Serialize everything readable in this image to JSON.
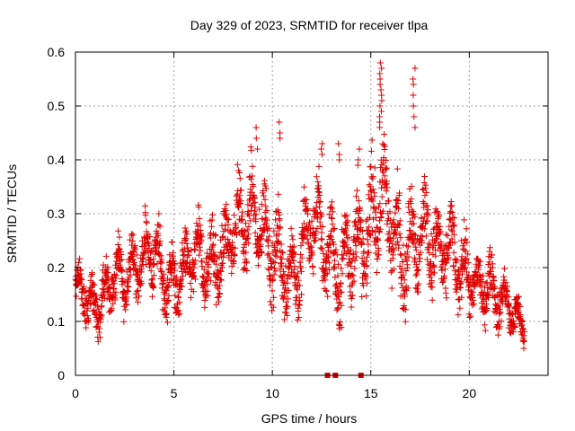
{
  "chart_data": {
    "type": "scatter",
    "title": "Day 329 of 2023, SRMTID for receiver tlpa",
    "xlabel": "GPS time / hours",
    "ylabel": "SRMTID / TECUs",
    "xlim": [
      0,
      24
    ],
    "ylim": [
      0,
      0.6
    ],
    "xticks": [
      0,
      5,
      10,
      15,
      20
    ],
    "xtick_labels": [
      "0",
      "5",
      "10",
      "15",
      "20"
    ],
    "yticks": [
      0,
      0.1,
      0.2,
      0.3,
      0.4,
      0.5,
      0.6
    ],
    "ytick_labels": [
      "0",
      "0.1",
      "0.2",
      "0.3",
      "0.4",
      "0.5",
      "0.6"
    ],
    "grid": true,
    "marker": "plus",
    "color": "#e00000",
    "series": [
      {
        "name": "SRMTID",
        "trend": {
          "x": [
            0,
            0.5,
            1.0,
            1.5,
            2.0,
            2.5,
            3.0,
            3.5,
            4.0,
            4.5,
            5.0,
            5.5,
            6.0,
            6.5,
            7.0,
            7.5,
            8.0,
            8.5,
            9.0,
            9.5,
            10.0,
            10.5,
            11.0,
            11.5,
            12.0,
            12.5,
            13.0,
            13.5,
            14.0,
            14.5,
            15.0,
            15.5,
            16.0,
            16.5,
            17.0,
            17.5,
            18.0,
            18.5,
            19.0,
            19.5,
            20.0,
            20.5,
            21.0,
            21.5,
            22.0,
            22.5,
            22.8
          ],
          "y": [
            0.16,
            0.15,
            0.12,
            0.16,
            0.19,
            0.18,
            0.2,
            0.21,
            0.24,
            0.18,
            0.17,
            0.19,
            0.23,
            0.21,
            0.2,
            0.23,
            0.27,
            0.28,
            0.3,
            0.27,
            0.23,
            0.21,
            0.18,
            0.22,
            0.29,
            0.26,
            0.22,
            0.18,
            0.25,
            0.23,
            0.28,
            0.33,
            0.3,
            0.22,
            0.24,
            0.27,
            0.26,
            0.22,
            0.24,
            0.2,
            0.18,
            0.16,
            0.17,
            0.14,
            0.13,
            0.1,
            0.09
          ]
        },
        "spread": {
          "x": [
            0,
            2,
            4,
            6,
            8,
            10,
            12,
            14,
            15,
            16,
            17,
            18,
            20,
            22,
            22.8
          ],
          "y": [
            0.05,
            0.06,
            0.07,
            0.07,
            0.09,
            0.09,
            0.09,
            0.1,
            0.11,
            0.11,
            0.1,
            0.09,
            0.07,
            0.05,
            0.04
          ]
        },
        "peaks": [
          {
            "x": 15.5,
            "values": [
              0.58,
              0.57,
              0.56,
              0.55,
              0.54,
              0.53,
              0.52,
              0.51,
              0.5,
              0.49,
              0.48,
              0.47,
              0.46
            ]
          },
          {
            "x": 17.2,
            "values": [
              0.57,
              0.55,
              0.54,
              0.52,
              0.5,
              0.48,
              0.46
            ]
          },
          {
            "x": 10.4,
            "values": [
              0.47,
              0.45,
              0.44
            ]
          },
          {
            "x": 9.2,
            "values": [
              0.46,
              0.44,
              0.42
            ]
          },
          {
            "x": 12.5,
            "values": [
              0.43,
              0.42,
              0.41
            ]
          },
          {
            "x": 13.4,
            "values": [
              0.43,
              0.41,
              0.4
            ]
          },
          {
            "x": 14.4,
            "values": [
              0.42,
              0.4,
              0.39
            ]
          }
        ],
        "zero_points": {
          "x": [
            12.8,
            13.2,
            14.5
          ],
          "y": [
            0,
            0,
            0
          ]
        },
        "x_range": [
          0,
          22.8
        ],
        "point_count": 2300,
        "y_clip": [
          0.05,
          0.58
        ]
      }
    ]
  }
}
